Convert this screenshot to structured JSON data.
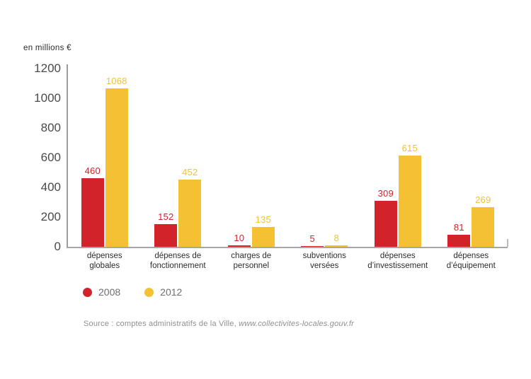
{
  "chart_data": {
    "type": "bar",
    "title": "",
    "unit_label": "en millions €",
    "categories": [
      [
        "dépenses",
        "globales"
      ],
      [
        "dépenses de",
        "fonctionnement"
      ],
      [
        "charges de",
        "personnel"
      ],
      [
        "subventions",
        "versées"
      ],
      [
        "dépenses",
        "d’investissement"
      ],
      [
        "dépenses",
        "d’équipement"
      ]
    ],
    "series": [
      {
        "name": "2008",
        "color": "#d2232a",
        "values": [
          460,
          152,
          10,
          5,
          309,
          81
        ]
      },
      {
        "name": "2012",
        "color": "#f3c133",
        "values": [
          1068,
          452,
          135,
          8,
          615,
          269
        ]
      }
    ],
    "ylim": [
      0,
      1200
    ],
    "yticks": [
      0,
      200,
      400,
      600,
      800,
      1000,
      1200
    ],
    "grid": false,
    "value_labels": true,
    "legend_position": "bottom-left",
    "axis_color": "#a5a5a5"
  },
  "source": {
    "prefix": "Source : comptes administratifs de la Ville, ",
    "link": "www.collectivites-locales.gouv.fr"
  }
}
